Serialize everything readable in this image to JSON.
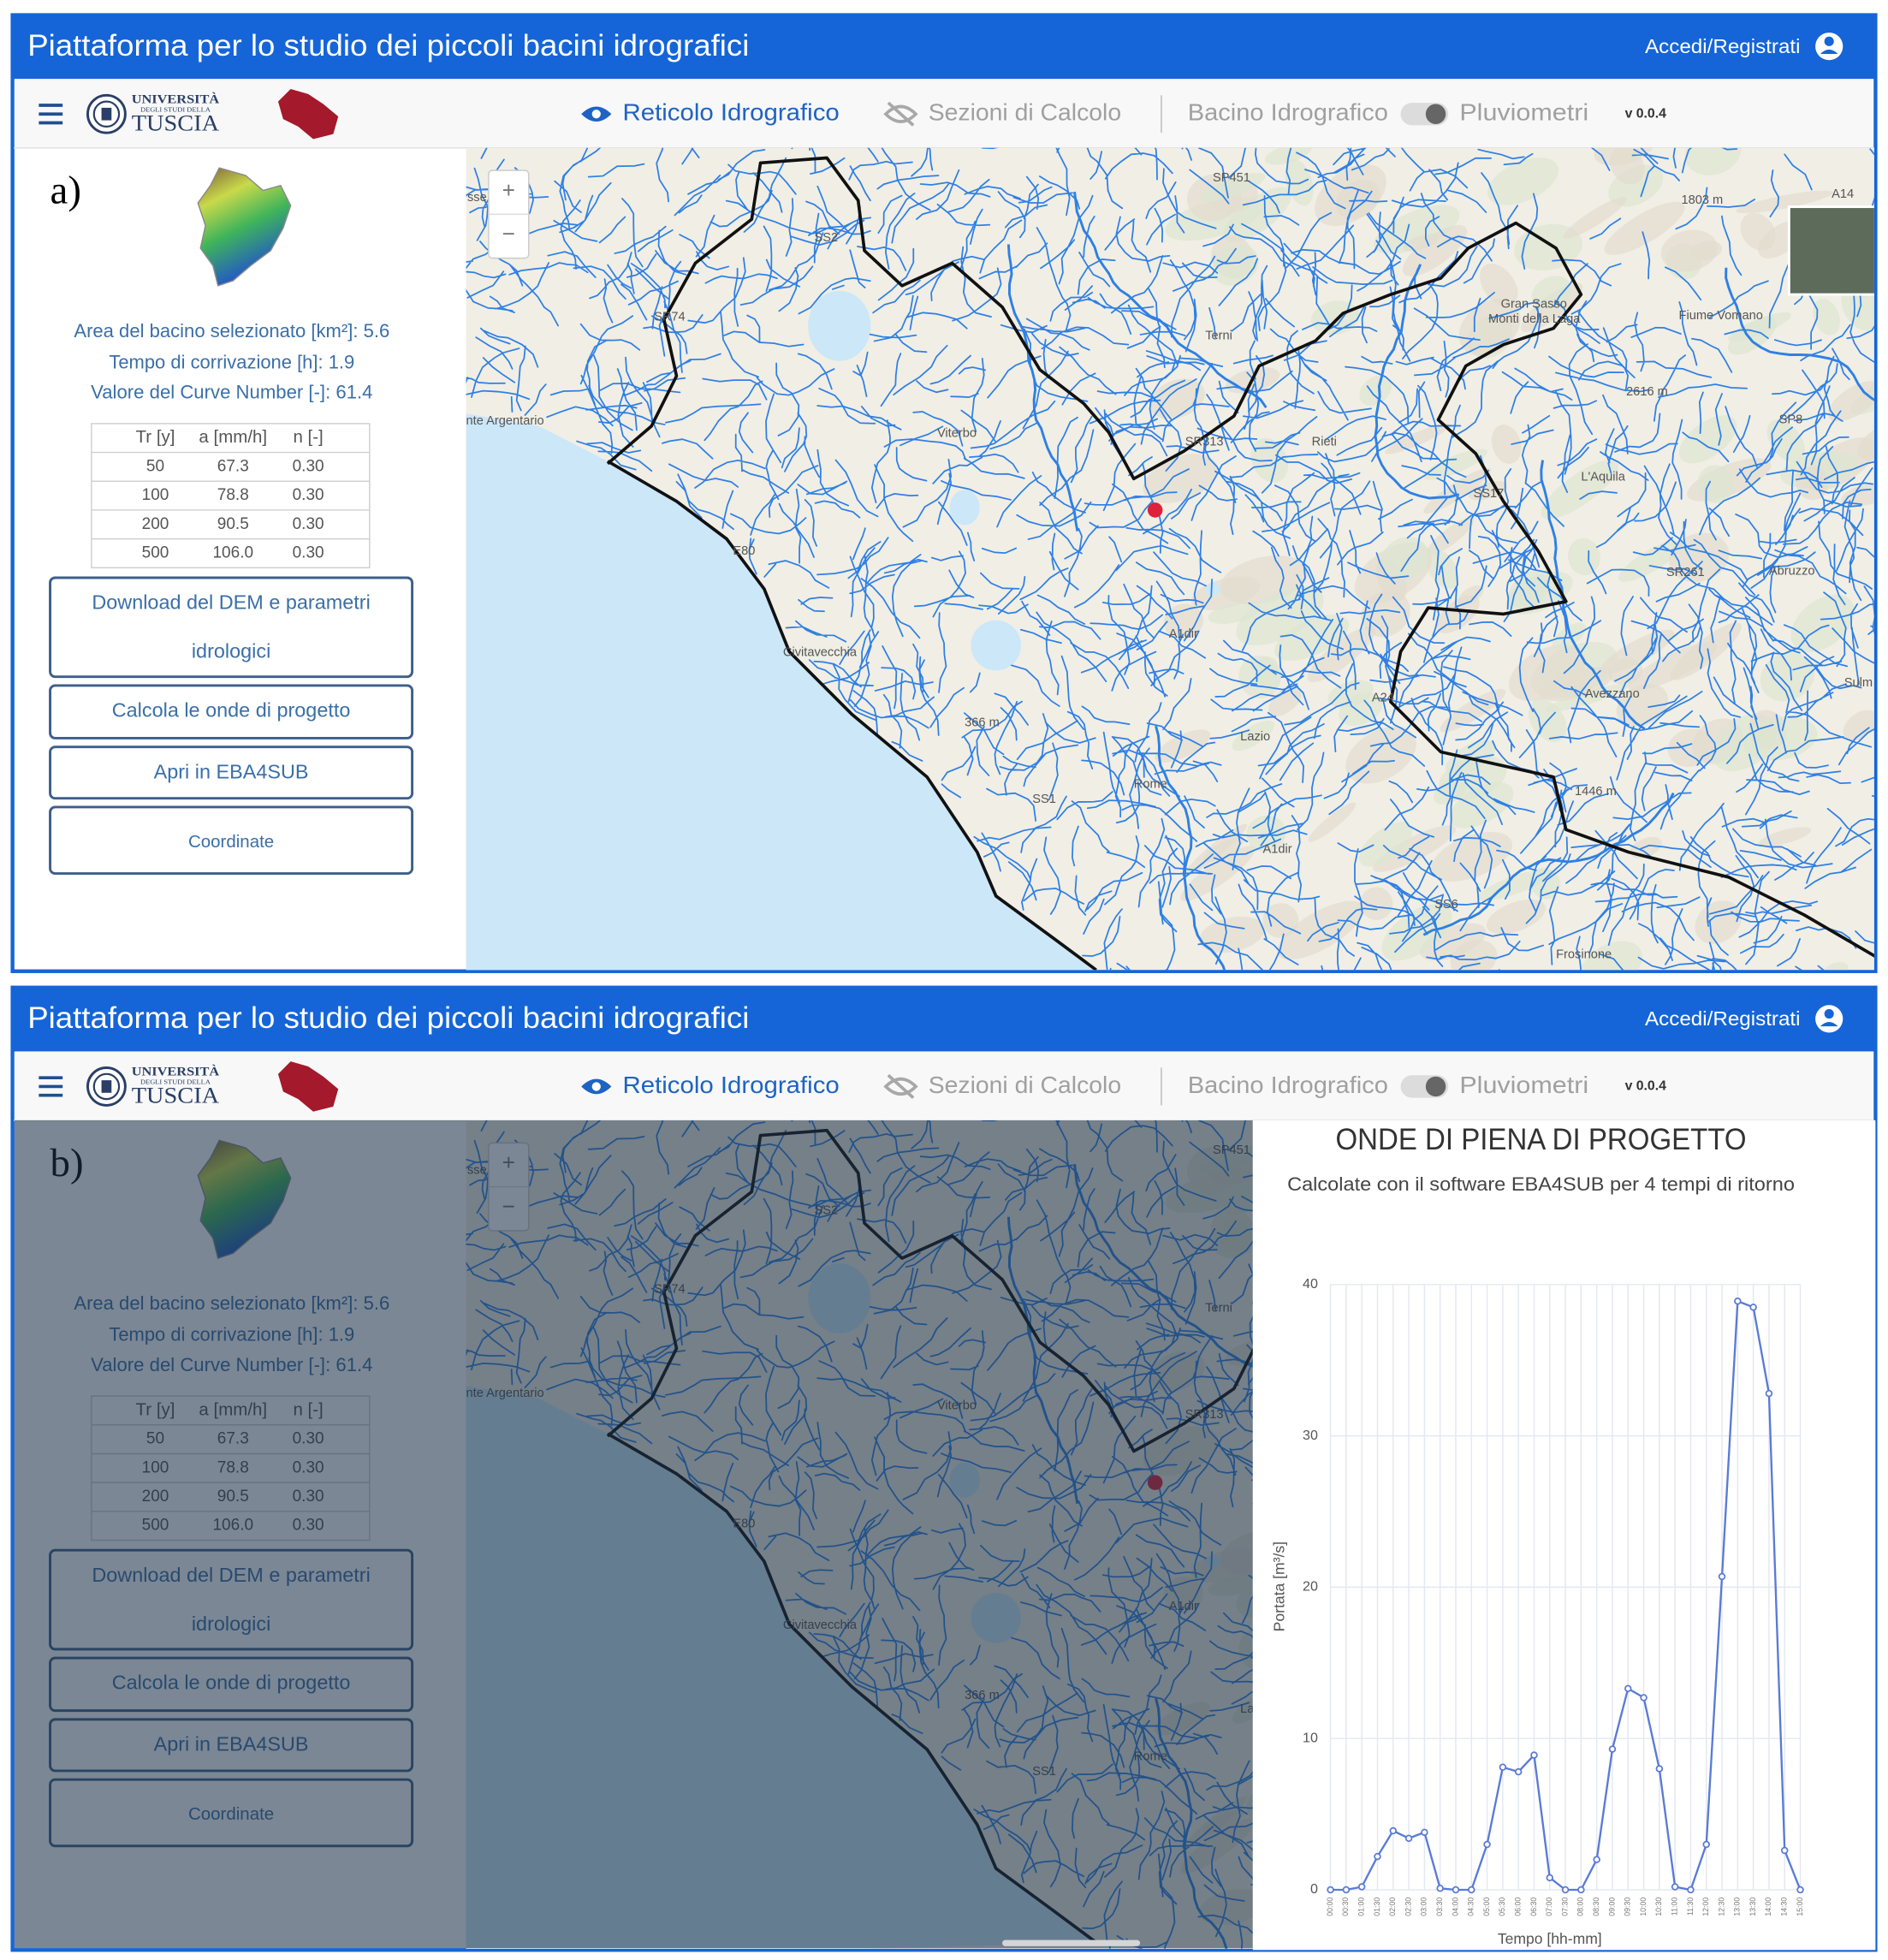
{
  "header": {
    "title": "Piattaforma per lo studio dei piccoli bacini idrografici",
    "login": "Accedi/Registrati"
  },
  "nav": {
    "logo_lines": [
      "UNIVERSITÀ",
      "DEGLI STUDI DELLA",
      "TUSCIA"
    ],
    "layers": [
      "Reticolo Idrografico",
      "Sezioni di Calcolo",
      "Bacino Idrografico",
      "Pluviometri"
    ],
    "version": "v 0.0.4"
  },
  "panels": [
    "a)",
    "b)"
  ],
  "sidebar": {
    "info": [
      "Area del bacino selezionato [km²]: 5.6",
      "Tempo di corrivazione [h]: 1.9",
      "Valore del Curve Number [-]: 61.4"
    ],
    "table": {
      "columns": [
        "Tr [y]",
        "a [mm/h]",
        "n [-]"
      ],
      "rows": [
        [
          "50",
          "67.3",
          "0.30"
        ],
        [
          "100",
          "78.8",
          "0.30"
        ],
        [
          "200",
          "90.5",
          "0.30"
        ],
        [
          "500",
          "106.0",
          "0.30"
        ]
      ]
    },
    "buttons": [
      "Download del DEM e parametri idrologici",
      "Calcola le onde di progetto",
      "Apri in EBA4SUB",
      "Coordinate"
    ]
  },
  "map": {
    "zoom": [
      "+",
      "−"
    ],
    "labels": [
      "sse",
      "SP451",
      "1803 m",
      "A14",
      "SS2",
      "SR74",
      "Terni",
      "Gran Sasso",
      "Monti della Laga",
      "Fiume Vomano",
      "2616 m",
      "nte Argentario",
      "Viterbo",
      "SR313",
      "Rieti",
      "SP8",
      "L'Aquila",
      "SS17",
      "E80",
      "SR261",
      "Abruzzo",
      "A1dir",
      "Civitavecchia",
      "Avezzano",
      "A24",
      "Sulm",
      "Lazio",
      "366 m",
      "Rome",
      "SS1",
      "1446 m",
      "A1dir",
      "SS6",
      "Frosinone"
    ]
  },
  "chart_data": {
    "type": "line",
    "title": "ONDE DI PIENA DI PROGETTO",
    "subtitle": "Calcolate con il software EBA4SUB per 4 tempi di ritorno",
    "x_label": "Tempo [hh-mm]",
    "y_label": "Portata [m³/s]",
    "categories": [
      "00:00",
      "00:30",
      "01:00",
      "01:30",
      "02:00",
      "02:30",
      "03:00",
      "03:30",
      "04:00",
      "04:30",
      "05:00",
      "05:30",
      "06:00",
      "06:30",
      "07:00",
      "07:30",
      "08:00",
      "08:30",
      "09:00",
      "09:30",
      "10:00",
      "10:30",
      "11:00",
      "11:30",
      "12:00",
      "12:30",
      "13:00",
      "13:30",
      "14:00",
      "14:30",
      "15:00"
    ],
    "values": [
      0,
      0,
      0.2,
      2.2,
      3.9,
      3.4,
      3.8,
      0.1,
      0,
      0,
      3,
      8.1,
      7.8,
      8.9,
      0.8,
      0,
      0,
      2,
      9.3,
      13.3,
      12.7,
      8,
      0.2,
      0,
      3,
      20.7,
      38.9,
      38.5,
      32.8,
      2.6,
      0
    ],
    "color": "#5a7ad6",
    "ylim": [
      0,
      40
    ],
    "yticks": [
      0,
      10,
      20,
      30,
      40
    ],
    "grid": true
  }
}
